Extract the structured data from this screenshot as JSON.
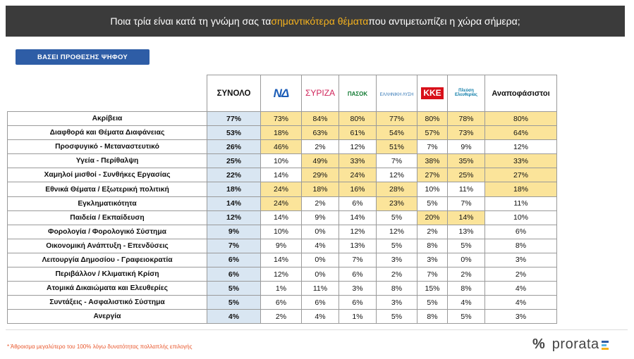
{
  "header": {
    "title_pre": "Ποια τρία είναι κατά τη γνώμη σας τα ",
    "title_highlight": "σημαντικότερα θέματα",
    "title_post": " που αντιμετωπίζει η χώρα σήμερα;"
  },
  "subset_label": "ΒΑΣΕΙ ΠΡΟΘΕΣΗΣ ΨΗΦΟΥ",
  "logos": {
    "nd": "ΝΔ",
    "syriza": "ΣΥΡΙΖΑ",
    "pasok": "ΠΑΣΟΚ",
    "ellisi": "ΕΛΛΗΝΙΚΗ ΛΥΣΗ",
    "kke": "ΚΚΕ",
    "pleusi": "Πλεύση Ελευθερίας"
  },
  "colors": {
    "title_bg": "#3b3b3b",
    "title_highlight": "#f5b21e",
    "subset_bg": "#2e5da6",
    "total_bg": "#d9e6f2",
    "highlight_bg": "#fbe49a",
    "footnote": "#e8562b"
  },
  "chart_data": {
    "type": "table",
    "columns": [
      "ΣΥΝΟΛΟ",
      "ΝΔ",
      "ΣΥΡΙΖΑ",
      "ΠΑΣΟΚ",
      "ΕΛΛΗΝΙΚΗ ΛΥΣΗ",
      "ΚΚΕ",
      "Πλεύση Ελευθερίας",
      "Αναποφάσιστοι"
    ],
    "rows": [
      {
        "issue": "Ακρίβεια",
        "values": [
          "77%",
          "73%",
          "84%",
          "80%",
          "77%",
          "80%",
          "78%",
          "80%"
        ],
        "hl": [
          0,
          1,
          1,
          1,
          1,
          1,
          1,
          1
        ]
      },
      {
        "issue": "Διαφθορά και Θέματα Διαφάνειας",
        "values": [
          "53%",
          "18%",
          "63%",
          "61%",
          "54%",
          "57%",
          "73%",
          "64%"
        ],
        "hl": [
          0,
          1,
          1,
          1,
          1,
          1,
          1,
          1
        ]
      },
      {
        "issue": "Προσφυγικό - Μεταναστευτικό",
        "values": [
          "26%",
          "46%",
          "2%",
          "12%",
          "51%",
          "7%",
          "9%",
          "12%"
        ],
        "hl": [
          0,
          1,
          0,
          0,
          1,
          0,
          0,
          0
        ]
      },
      {
        "issue": "Υγεία - Περίθαλψη",
        "values": [
          "25%",
          "10%",
          "49%",
          "33%",
          "7%",
          "38%",
          "35%",
          "33%"
        ],
        "hl": [
          0,
          0,
          1,
          1,
          0,
          1,
          1,
          1
        ]
      },
      {
        "issue": "Χαμηλοί μισθοί - Συνθήκες Εργασίας",
        "values": [
          "22%",
          "14%",
          "29%",
          "24%",
          "12%",
          "27%",
          "25%",
          "27%"
        ],
        "hl": [
          0,
          0,
          1,
          1,
          0,
          1,
          1,
          1
        ]
      },
      {
        "issue": "Εθνικά Θέματα / Εξωτερική πολιτική",
        "values": [
          "18%",
          "24%",
          "18%",
          "16%",
          "28%",
          "10%",
          "11%",
          "18%"
        ],
        "hl": [
          0,
          1,
          1,
          1,
          1,
          0,
          0,
          1
        ]
      },
      {
        "issue": "Εγκληματικότητα",
        "values": [
          "14%",
          "24%",
          "2%",
          "6%",
          "23%",
          "5%",
          "7%",
          "11%"
        ],
        "hl": [
          0,
          1,
          0,
          0,
          1,
          0,
          0,
          0
        ]
      },
      {
        "issue": "Παιδεία / Εκπαίδευση",
        "values": [
          "12%",
          "14%",
          "9%",
          "14%",
          "5%",
          "20%",
          "14%",
          "10%"
        ],
        "hl": [
          0,
          0,
          0,
          0,
          0,
          1,
          1,
          0
        ]
      },
      {
        "issue": "Φορολογία / Φορολογικό Σύστημα",
        "values": [
          "9%",
          "10%",
          "0%",
          "12%",
          "12%",
          "2%",
          "13%",
          "6%"
        ],
        "hl": [
          0,
          0,
          0,
          0,
          0,
          0,
          0,
          0
        ]
      },
      {
        "issue": "Οικονομική Ανάπτυξη - Επενδύσεις",
        "values": [
          "7%",
          "9%",
          "4%",
          "13%",
          "5%",
          "8%",
          "5%",
          "8%"
        ],
        "hl": [
          0,
          0,
          0,
          0,
          0,
          0,
          0,
          0
        ]
      },
      {
        "issue": "Λειτουργία Δημοσίου - Γραφειοκρατία",
        "values": [
          "6%",
          "14%",
          "0%",
          "7%",
          "3%",
          "3%",
          "0%",
          "3%"
        ],
        "hl": [
          0,
          0,
          0,
          0,
          0,
          0,
          0,
          0
        ]
      },
      {
        "issue": "Περιβάλλον / Κλιματική Κρίση",
        "values": [
          "6%",
          "12%",
          "0%",
          "6%",
          "2%",
          "7%",
          "2%",
          "2%"
        ],
        "hl": [
          0,
          0,
          0,
          0,
          0,
          0,
          0,
          0
        ]
      },
      {
        "issue": "Ατομικά Δικαιώματα και Ελευθερίες",
        "values": [
          "5%",
          "1%",
          "11%",
          "3%",
          "8%",
          "15%",
          "8%",
          "4%"
        ],
        "hl": [
          0,
          0,
          0,
          0,
          0,
          0,
          0,
          0
        ]
      },
      {
        "issue": "Συντάξεις - Ασφαλιστικό Σύστημα",
        "values": [
          "5%",
          "6%",
          "6%",
          "6%",
          "3%",
          "5%",
          "4%",
          "4%"
        ],
        "hl": [
          0,
          0,
          0,
          0,
          0,
          0,
          0,
          0
        ]
      },
      {
        "issue": "Ανεργία",
        "values": [
          "4%",
          "2%",
          "4%",
          "1%",
          "5%",
          "8%",
          "5%",
          "3%"
        ],
        "hl": [
          0,
          0,
          0,
          0,
          0,
          0,
          0,
          0
        ]
      }
    ]
  },
  "footnote": "* Άθροισμα μεγαλύτερο του 100% λόγω δυνατότητας πολλαπλής επιλογής",
  "brand": {
    "symbol": "%",
    "name": "prorata"
  }
}
